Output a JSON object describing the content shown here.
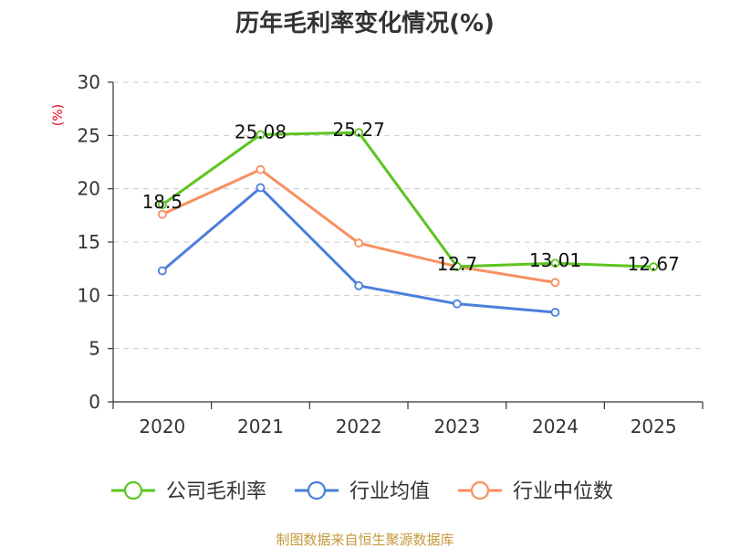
{
  "chart_data": {
    "type": "line",
    "title": "历年毛利率变化情况(%)",
    "ylabel": "(%)",
    "xlabel": "",
    "categories": [
      "2020",
      "2021",
      "2022",
      "2023",
      "2024",
      "2025"
    ],
    "ylim": [
      0,
      30
    ],
    "yticks": [
      0,
      5,
      10,
      15,
      20,
      25,
      30
    ],
    "grid": true,
    "legend_position": "bottom",
    "series": [
      {
        "name": "公司毛利率",
        "color": "#5cc520",
        "values": [
          18.5,
          25.08,
          25.27,
          12.7,
          13.01,
          12.67
        ],
        "labels": [
          "18.5",
          "25.08",
          "25.27",
          "12.7",
          "13.01",
          "12.67"
        ]
      },
      {
        "name": "行业均值",
        "color": "#4a7fdb",
        "values": [
          12.3,
          20.1,
          10.9,
          9.2,
          8.4,
          null
        ]
      },
      {
        "name": "行业中位数",
        "color": "#f79060",
        "values": [
          17.6,
          21.8,
          14.9,
          12.7,
          11.2,
          null
        ]
      }
    ]
  },
  "footer": {
    "source": "制图数据来自恒生聚源数据库"
  }
}
